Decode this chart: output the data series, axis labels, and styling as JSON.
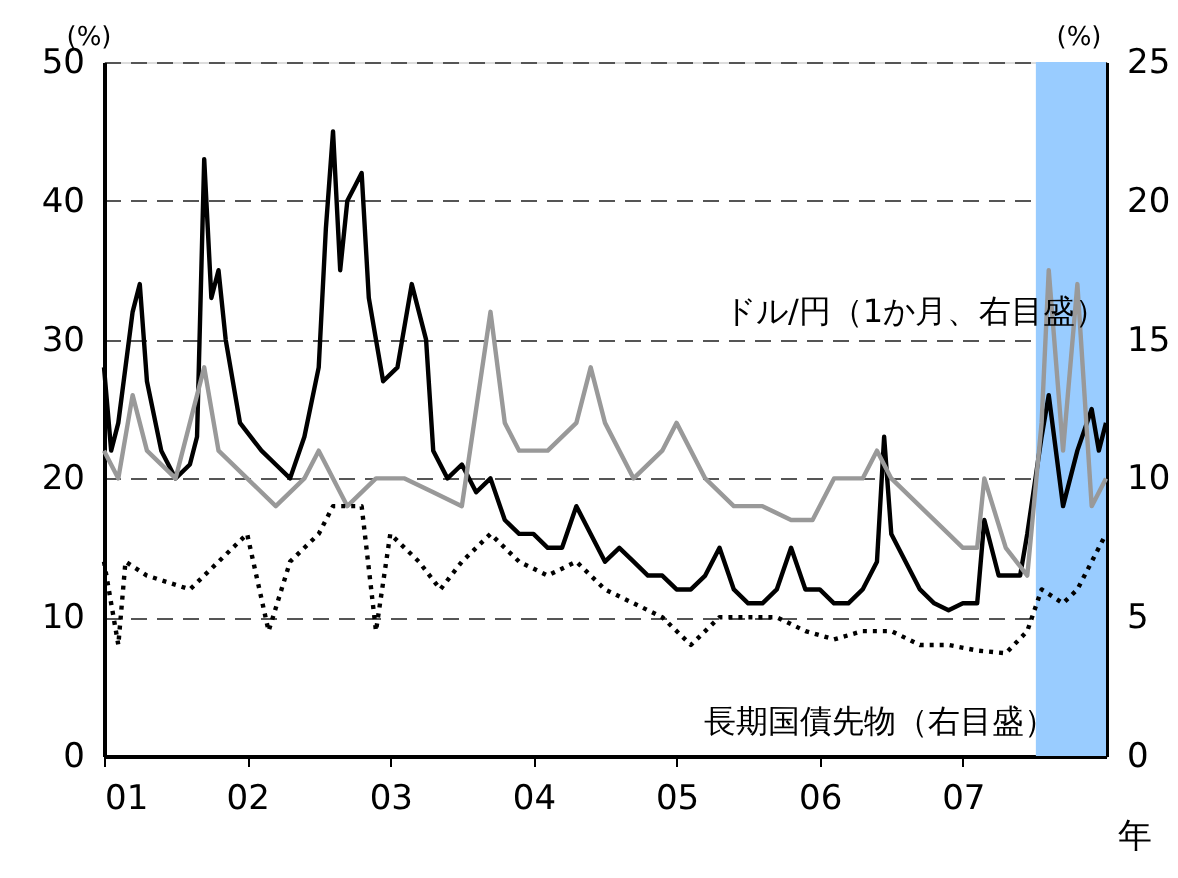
{
  "chart_data": {
    "type": "line",
    "ylabel": "(%)",
    "y2label": "(%)",
    "xlabel": "年",
    "xlim": [
      2001,
      2008
    ],
    "xticks": [
      {
        "value": 2001,
        "label": "01"
      },
      {
        "value": 2002,
        "label": "02"
      },
      {
        "value": 2003,
        "label": "03"
      },
      {
        "value": 2004,
        "label": "04"
      },
      {
        "value": 2005,
        "label": "05"
      },
      {
        "value": 2006,
        "label": "06"
      },
      {
        "value": 2007,
        "label": "07"
      }
    ],
    "ylim": [
      0,
      50
    ],
    "yticks": [
      0,
      10,
      20,
      30,
      40,
      50
    ],
    "y2lim": [
      0,
      25
    ],
    "y2ticks": [
      0,
      5,
      10,
      15,
      20,
      25
    ],
    "grid": "y",
    "legend": false,
    "bands": [
      {
        "axis": "x",
        "from": 2007.51,
        "to": 2008,
        "color": "#99ccff"
      }
    ],
    "series": [
      {
        "color": "#000000",
        "line_style": "solid",
        "x": [
          2001.0,
          2001.05,
          2001.1,
          2001.2,
          2001.25,
          2001.3,
          2001.4,
          2001.5,
          2001.6,
          2001.65,
          2001.7,
          2001.75,
          2001.8,
          2001.85,
          2001.95,
          2002.1,
          2002.2,
          2002.3,
          2002.4,
          2002.5,
          2002.55,
          2002.6,
          2002.65,
          2002.7,
          2002.75,
          2002.8,
          2002.85,
          2002.9,
          2002.95,
          2003.05,
          2003.15,
          2003.2,
          2003.25,
          2003.3,
          2003.4,
          2003.5,
          2003.6,
          2003.7,
          2003.8,
          2003.9,
          2004.0,
          2004.1,
          2004.2,
          2004.3,
          2004.4,
          2004.5,
          2004.6,
          2004.7,
          2004.8,
          2004.9,
          2005.0,
          2005.1,
          2005.2,
          2005.3,
          2005.4,
          2005.5,
          2005.6,
          2005.7,
          2005.8,
          2005.9,
          2006.0,
          2006.1,
          2006.2,
          2006.3,
          2006.4,
          2006.45,
          2006.5,
          2006.6,
          2006.7,
          2006.8,
          2006.9,
          2007.0,
          2007.1,
          2007.15,
          2007.25,
          2007.4,
          2007.45,
          2007.55,
          2007.6,
          2007.7,
          2007.8,
          2007.9,
          2007.95,
          2008.0
        ],
        "values": [
          28,
          22,
          24,
          32,
          34,
          27,
          22,
          20,
          21,
          23,
          43,
          33,
          35,
          30,
          24,
          22,
          21,
          20,
          23,
          28,
          38,
          45,
          35,
          40,
          41,
          42,
          33,
          30,
          27,
          28,
          34,
          32,
          30,
          22,
          20,
          21,
          19,
          20,
          17,
          16,
          16,
          15,
          15,
          18,
          16,
          14,
          15,
          14,
          13,
          13,
          12,
          12,
          13,
          15,
          12,
          11,
          11,
          12,
          15,
          12,
          12,
          11,
          11,
          12,
          14,
          23,
          16,
          14,
          12,
          11,
          10.5,
          11,
          11,
          17,
          13,
          13,
          16,
          23,
          26,
          18,
          22,
          25,
          22,
          24
        ]
      },
      {
        "name": "ドル/円（1か月、右目盛）",
        "color": "#999999",
        "axis": "y2",
        "line_style": "solid",
        "x": [
          2001.0,
          2001.1,
          2001.2,
          2001.3,
          2001.5,
          2001.7,
          2001.8,
          2002.0,
          2002.2,
          2002.4,
          2002.5,
          2002.7,
          2002.9,
          2003.1,
          2003.3,
          2003.5,
          2003.7,
          2003.8,
          2003.9,
          2004.1,
          2004.3,
          2004.4,
          2004.5,
          2004.7,
          2004.9,
          2005.0,
          2005.2,
          2005.4,
          2005.6,
          2005.8,
          2005.95,
          2006.1,
          2006.3,
          2006.4,
          2006.5,
          2006.7,
          2006.9,
          2007.0,
          2007.1,
          2007.15,
          2007.3,
          2007.45,
          2007.55,
          2007.6,
          2007.7,
          2007.8,
          2007.9,
          2008.0
        ],
        "values": [
          11,
          10,
          13,
          11,
          10,
          14,
          11,
          10,
          9,
          10,
          11,
          9,
          10,
          10,
          9.5,
          9,
          16,
          12,
          11,
          11,
          12,
          14,
          12,
          10,
          11,
          12,
          10,
          9,
          9,
          8.5,
          8.5,
          10,
          10,
          11,
          10,
          9,
          8,
          7.5,
          7.5,
          10,
          7.5,
          6.5,
          12,
          17.5,
          11,
          17,
          9,
          10
        ]
      },
      {
        "name": "長期国債先物（右目盛）",
        "color": "#000000",
        "axis": "y2",
        "line_style": "dotted",
        "x": [
          2001.0,
          2001.1,
          2001.15,
          2001.3,
          2001.6,
          2001.8,
          2002.0,
          2002.15,
          2002.3,
          2002.5,
          2002.6,
          2002.8,
          2002.9,
          2003.0,
          2003.2,
          2003.35,
          2003.5,
          2003.7,
          2003.9,
          2004.1,
          2004.3,
          2004.5,
          2004.7,
          2004.9,
          2005.1,
          2005.3,
          2005.5,
          2005.7,
          2005.9,
          2006.1,
          2006.3,
          2006.5,
          2006.7,
          2006.9,
          2007.1,
          2007.3,
          2007.45,
          2007.55,
          2007.7,
          2007.8,
          2007.9,
          2008.0
        ],
        "values": [
          7,
          4,
          7,
          6.5,
          6,
          7,
          8,
          4.5,
          7,
          8,
          9,
          9,
          4.5,
          8,
          7,
          6,
          7,
          8,
          7,
          6.5,
          7,
          6,
          5.5,
          5,
          4,
          5,
          5,
          5,
          4.5,
          4.2,
          4.5,
          4.5,
          4,
          4,
          3.8,
          3.7,
          4.5,
          6,
          5.5,
          6,
          7,
          8
        ]
      }
    ]
  }
}
